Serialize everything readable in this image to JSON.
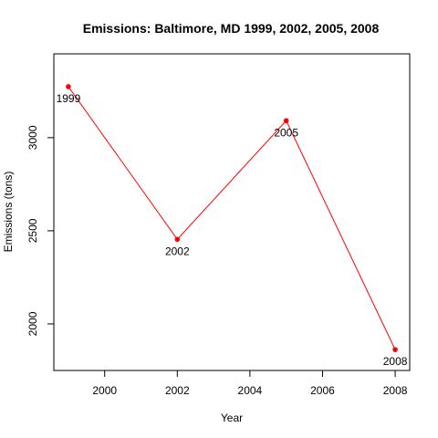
{
  "chart_data": {
    "type": "line",
    "title": "Emissions: Baltimore, MD 1999, 2002, 2005, 2008",
    "xlabel": "Year",
    "ylabel": "Emissions (tons)",
    "x": [
      1999,
      2002,
      2005,
      2008
    ],
    "series": [
      {
        "values": [
          3274,
          2454,
          3091,
          1862
        ],
        "point_labels": [
          "1999",
          "2002",
          "2005",
          "2008"
        ]
      }
    ],
    "xlim": [
      1998.6,
      2008.4
    ],
    "ylim": [
      1750,
      3450
    ],
    "xticks": [
      2000,
      2002,
      2004,
      2006,
      2008
    ],
    "yticks": [
      2000,
      2500,
      3000
    ],
    "line_color": "#ff0000",
    "point_color": "#ff0000",
    "grid": false,
    "legend": "none"
  }
}
